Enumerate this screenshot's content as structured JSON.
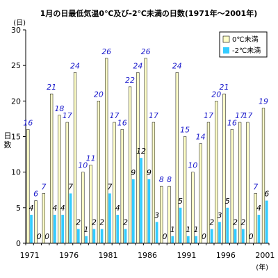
{
  "chart_data": {
    "type": "bar",
    "title": "1月の日最低気温0℃及び-2℃未満の日数(1971年～2001年)",
    "ylabel": "日数",
    "yunit": "(日)",
    "xunit": "(年)",
    "ylim": [
      0,
      30
    ],
    "yticks": [
      0,
      5,
      10,
      15,
      20,
      25,
      30
    ],
    "x": [
      1971,
      1972,
      1973,
      1974,
      1975,
      1976,
      1977,
      1978,
      1979,
      1980,
      1981,
      1982,
      1983,
      1984,
      1985,
      1986,
      1987,
      1988,
      1989,
      1990,
      1991,
      1992,
      1993,
      1994,
      1995,
      1996,
      1997,
      1998,
      1999,
      2000,
      2001
    ],
    "xtick_labels": [
      1971,
      1976,
      1981,
      1986,
      1991,
      1996,
      2001
    ],
    "series": [
      {
        "name": "0℃未満",
        "color": "#ffffc8",
        "values": [
          16,
          6,
          7,
          21,
          18,
          17,
          24,
          10,
          11,
          20,
          26,
          17,
          16,
          22,
          24,
          26,
          17,
          8,
          8,
          24,
          15,
          10,
          14,
          17,
          20,
          21,
          16,
          17,
          17,
          7,
          19
        ]
      },
      {
        "name": "-2℃未満",
        "color": "#33ccff",
        "values": [
          4,
          0,
          0,
          4,
          4,
          7,
          2,
          1,
          2,
          2,
          7,
          4,
          2,
          9,
          12,
          9,
          3,
          0,
          1,
          5,
          1,
          1,
          0,
          2,
          3,
          5,
          2,
          2,
          0,
          4,
          6
        ]
      }
    ],
    "legend_position": "top-right",
    "grid": false
  }
}
